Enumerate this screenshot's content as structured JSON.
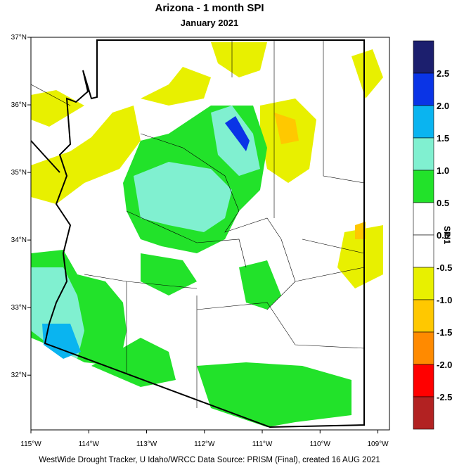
{
  "chart_data": {
    "type": "map",
    "title": "Arizona - 1 month SPI",
    "subtitle": "January 2021",
    "xlim": [
      -115,
      -108.8
    ],
    "ylim": [
      31.19,
      37
    ],
    "xticks": [
      {
        "value": -115,
        "label": "115°W"
      },
      {
        "value": -114,
        "label": "114°W"
      },
      {
        "value": -113,
        "label": "113°W"
      },
      {
        "value": -112,
        "label": "112°W"
      },
      {
        "value": -111,
        "label": "111°W"
      },
      {
        "value": -110,
        "label": "110°W"
      },
      {
        "value": -109,
        "label": "109°W"
      }
    ],
    "yticks": [
      {
        "value": 37,
        "label": "37°N"
      },
      {
        "value": 36,
        "label": "36°N"
      },
      {
        "value": 35,
        "label": "35°N"
      },
      {
        "value": 34,
        "label": "34°N"
      },
      {
        "value": 33,
        "label": "33°N"
      },
      {
        "value": 32,
        "label": "32°N"
      }
    ],
    "colorbar": {
      "title": "SPI1",
      "clim": [
        -3,
        3
      ],
      "ticks": [
        2.5,
        {
          "value": 2,
          "label": "2.0"
        },
        1.5,
        {
          "value": 1,
          "label": "1.0"
        },
        0.5,
        {
          "value": 0,
          "label": "0.0"
        },
        -0.5,
        {
          "value": -1,
          "label": "-1.0"
        },
        -1.5,
        {
          "value": -2,
          "label": "-2.0"
        },
        -2.5
      ],
      "colors": [
        "#1c1f6e",
        "#0a34e6",
        "#0ab4f0",
        "#80f0d0",
        "#22e22a",
        "#ffffff",
        "#ffffff",
        "#e8f000",
        "#ffc800",
        "#ff8a00",
        "#ff0000",
        "#b22222"
      ]
    },
    "footer": "WestWide Drought Tracker, U Idaho/WRCC Data Source: PRISM (Final), created 16 AUG 2021"
  }
}
